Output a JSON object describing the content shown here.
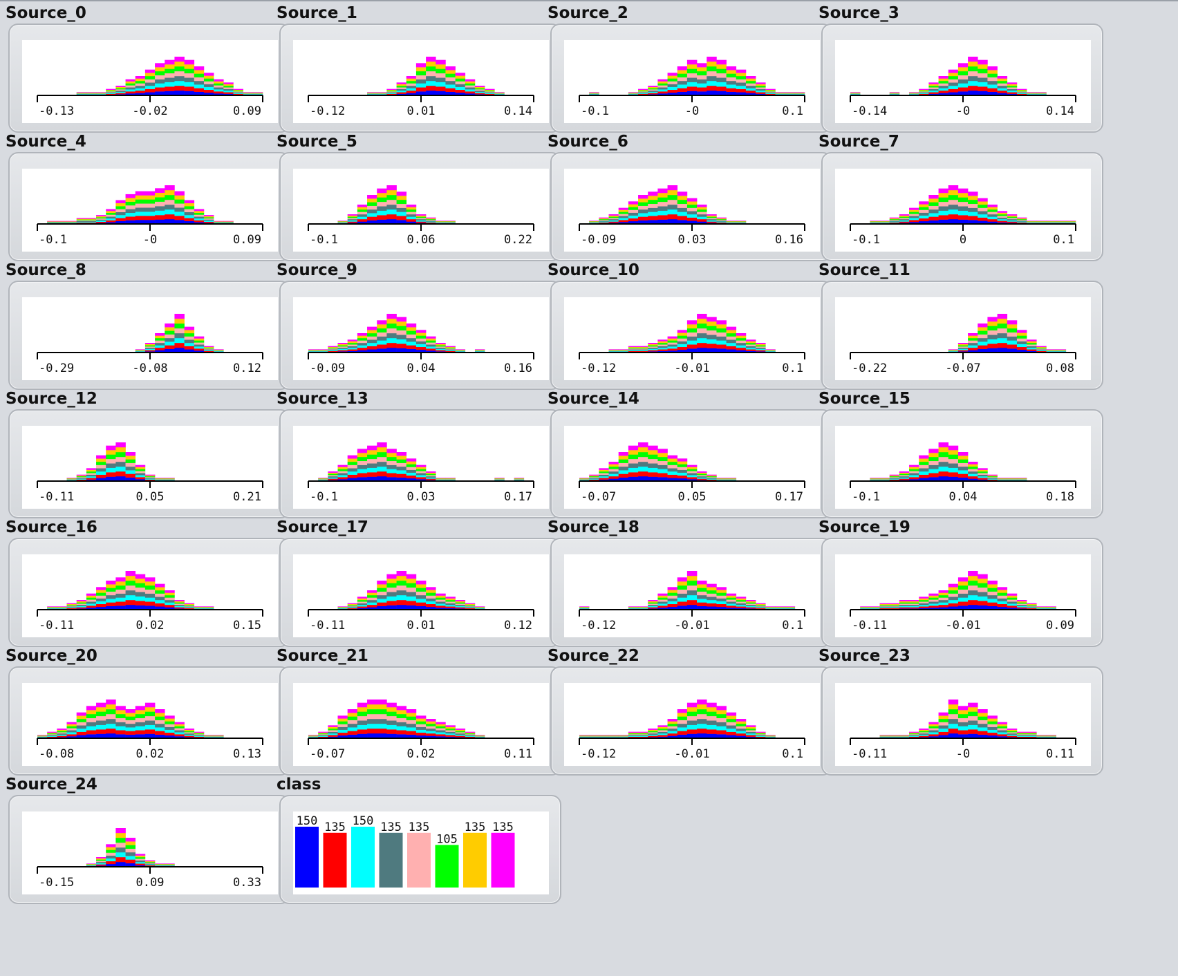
{
  "app": {
    "view": "attribute-distribution-panel"
  },
  "class_colors": [
    "#0000ff",
    "#ff0000",
    "#00ffff",
    "#4f7a7f",
    "#ffb0b0",
    "#00ff00",
    "#ffcc00",
    "#ff00ff"
  ],
  "panels": [
    {
      "name": "Source_0",
      "ticks": [
        "-0.13",
        "-0.02",
        "0.09"
      ],
      "shape": [
        0,
        0,
        0,
        0,
        1,
        1,
        1,
        2,
        3,
        5,
        6,
        8,
        10,
        11,
        12,
        11,
        9,
        7,
        5,
        4,
        2,
        1,
        1
      ]
    },
    {
      "name": "Source_1",
      "ticks": [
        "-0.12",
        "0.01",
        "0.14"
      ],
      "shape": [
        0,
        0,
        0,
        0,
        0,
        0,
        1,
        1,
        2,
        4,
        6,
        10,
        12,
        11,
        9,
        7,
        5,
        3,
        2,
        1,
        0,
        0,
        0
      ]
    },
    {
      "name": "Source_2",
      "ticks": [
        "-0.1",
        "-0",
        "0.1"
      ],
      "shape": [
        0,
        1,
        0,
        0,
        0,
        1,
        2,
        3,
        5,
        7,
        9,
        11,
        10,
        12,
        11,
        9,
        8,
        6,
        4,
        2,
        1,
        1,
        1
      ]
    },
    {
      "name": "Source_3",
      "ticks": [
        "-0.14",
        "-0",
        "0.14"
      ],
      "shape": [
        1,
        0,
        0,
        0,
        1,
        0,
        1,
        2,
        4,
        6,
        8,
        10,
        12,
        11,
        9,
        6,
        4,
        2,
        1,
        1,
        0,
        0,
        0
      ]
    },
    {
      "name": "Source_4",
      "ticks": [
        "-0.1",
        "-0",
        "0.09"
      ],
      "shape": [
        0,
        1,
        1,
        1,
        2,
        2,
        3,
        5,
        8,
        10,
        11,
        11,
        12,
        13,
        11,
        8,
        5,
        3,
        1,
        1,
        0,
        0,
        0
      ]
    },
    {
      "name": "Source_5",
      "ticks": [
        "-0.1",
        "0.06",
        "0.22"
      ],
      "shape": [
        0,
        0,
        0,
        1,
        3,
        6,
        9,
        11,
        12,
        10,
        6,
        3,
        2,
        1,
        1,
        0,
        0,
        0,
        0,
        0,
        0,
        0,
        0
      ]
    },
    {
      "name": "Source_6",
      "ticks": [
        "-0.09",
        "0.03",
        "0.16"
      ],
      "shape": [
        0,
        1,
        2,
        3,
        5,
        7,
        9,
        10,
        11,
        12,
        10,
        8,
        6,
        3,
        2,
        1,
        1,
        0,
        0,
        0,
        0,
        0,
        0
      ]
    },
    {
      "name": "Source_7",
      "ticks": [
        "-0.1",
        "0",
        "0.1"
      ],
      "shape": [
        0,
        0,
        1,
        1,
        2,
        3,
        5,
        7,
        9,
        11,
        12,
        11,
        10,
        8,
        6,
        4,
        3,
        2,
        1,
        1,
        1,
        1,
        1
      ]
    },
    {
      "name": "Source_8",
      "ticks": [
        "-0.29",
        "-0.08",
        "0.12"
      ],
      "shape": [
        0,
        0,
        0,
        0,
        0,
        0,
        0,
        0,
        0,
        0,
        1,
        3,
        6,
        9,
        12,
        8,
        5,
        2,
        1,
        0,
        0,
        0,
        0
      ]
    },
    {
      "name": "Source_9",
      "ticks": [
        "-0.09",
        "0.04",
        "0.16"
      ],
      "shape": [
        1,
        1,
        2,
        3,
        4,
        6,
        8,
        10,
        12,
        11,
        9,
        7,
        5,
        3,
        2,
        1,
        0,
        1,
        0,
        0,
        0,
        0,
        0
      ]
    },
    {
      "name": "Source_10",
      "ticks": [
        "-0.12",
        "-0.01",
        "0.1"
      ],
      "shape": [
        0,
        0,
        0,
        1,
        1,
        2,
        2,
        3,
        4,
        5,
        7,
        10,
        12,
        11,
        10,
        8,
        6,
        4,
        3,
        1,
        0,
        0,
        0
      ]
    },
    {
      "name": "Source_11",
      "ticks": [
        "-0.22",
        "-0.07",
        "0.08"
      ],
      "shape": [
        0,
        0,
        0,
        0,
        0,
        0,
        0,
        0,
        0,
        0,
        1,
        3,
        6,
        9,
        11,
        12,
        10,
        7,
        4,
        2,
        1,
        1,
        0
      ]
    },
    {
      "name": "Source_12",
      "ticks": [
        "-0.11",
        "0.05",
        "0.21"
      ],
      "shape": [
        0,
        0,
        0,
        1,
        2,
        4,
        8,
        11,
        12,
        9,
        5,
        2,
        1,
        1,
        0,
        0,
        0,
        0,
        0,
        0,
        0,
        0,
        0
      ]
    },
    {
      "name": "Source_13",
      "ticks": [
        "-0.1",
        "0.03",
        "0.17"
      ],
      "shape": [
        0,
        1,
        3,
        5,
        8,
        10,
        11,
        12,
        10,
        9,
        7,
        5,
        3,
        1,
        1,
        0,
        0,
        0,
        0,
        1,
        0,
        1,
        0
      ]
    },
    {
      "name": "Source_14",
      "ticks": [
        "-0.07",
        "0.05",
        "0.17"
      ],
      "shape": [
        1,
        2,
        4,
        6,
        9,
        11,
        12,
        11,
        10,
        8,
        7,
        5,
        3,
        2,
        1,
        1,
        0,
        0,
        0,
        0,
        0,
        0,
        0
      ]
    },
    {
      "name": "Source_15",
      "ticks": [
        "-0.1",
        "0.04",
        "0.18"
      ],
      "shape": [
        0,
        0,
        1,
        1,
        2,
        3,
        5,
        8,
        10,
        12,
        11,
        9,
        6,
        4,
        2,
        1,
        1,
        1,
        0,
        0,
        0,
        0,
        0
      ]
    },
    {
      "name": "Source_16",
      "ticks": [
        "-0.11",
        "0.02",
        "0.15"
      ],
      "shape": [
        0,
        1,
        1,
        2,
        3,
        5,
        7,
        9,
        10,
        12,
        11,
        10,
        8,
        6,
        3,
        2,
        1,
        1,
        0,
        0,
        0,
        0,
        0
      ]
    },
    {
      "name": "Source_17",
      "ticks": [
        "-0.11",
        "0.01",
        "0.12"
      ],
      "shape": [
        0,
        0,
        0,
        1,
        2,
        4,
        6,
        9,
        11,
        12,
        11,
        9,
        7,
        5,
        4,
        3,
        2,
        1,
        0,
        0,
        0,
        0,
        0
      ]
    },
    {
      "name": "Source_18",
      "ticks": [
        "-0.12",
        "-0.01",
        "0.1"
      ],
      "shape": [
        1,
        0,
        0,
        0,
        0,
        1,
        1,
        3,
        5,
        7,
        10,
        12,
        9,
        8,
        7,
        5,
        4,
        3,
        2,
        1,
        1,
        1,
        0
      ]
    },
    {
      "name": "Source_19",
      "ticks": [
        "-0.11",
        "-0.01",
        "0.09"
      ],
      "shape": [
        0,
        1,
        1,
        2,
        2,
        3,
        3,
        4,
        5,
        6,
        8,
        10,
        12,
        11,
        9,
        7,
        5,
        3,
        2,
        1,
        1,
        0,
        0
      ]
    },
    {
      "name": "Source_20",
      "ticks": [
        "-0.08",
        "0.02",
        "0.13"
      ],
      "shape": [
        1,
        2,
        3,
        5,
        8,
        10,
        11,
        12,
        10,
        9,
        10,
        11,
        9,
        7,
        5,
        3,
        2,
        1,
        1,
        0,
        0,
        0,
        0
      ]
    },
    {
      "name": "Source_21",
      "ticks": [
        "-0.07",
        "0.02",
        "0.11"
      ],
      "shape": [
        1,
        2,
        4,
        7,
        9,
        11,
        12,
        12,
        11,
        10,
        9,
        7,
        6,
        5,
        4,
        3,
        2,
        1,
        0,
        0,
        0,
        0,
        0
      ]
    },
    {
      "name": "Source_22",
      "ticks": [
        "-0.12",
        "-0.01",
        "0.1"
      ],
      "shape": [
        1,
        1,
        1,
        1,
        1,
        2,
        2,
        3,
        4,
        6,
        9,
        11,
        12,
        11,
        10,
        8,
        6,
        4,
        2,
        1,
        0,
        0,
        0
      ]
    },
    {
      "name": "Source_23",
      "ticks": [
        "-0.11",
        "-0",
        "0.11"
      ],
      "shape": [
        0,
        0,
        0,
        1,
        1,
        1,
        2,
        3,
        5,
        8,
        12,
        10,
        11,
        9,
        7,
        5,
        3,
        2,
        2,
        1,
        1,
        0,
        0
      ]
    },
    {
      "name": "Source_24",
      "ticks": [
        "-0.15",
        "0.09",
        "0.33"
      ],
      "shape": [
        0,
        0,
        0,
        0,
        0,
        1,
        3,
        7,
        12,
        9,
        4,
        2,
        1,
        1,
        0,
        0,
        0,
        0,
        0,
        0,
        0,
        0,
        0
      ]
    }
  ],
  "class_panel": {
    "name": "class",
    "counts": [
      "150",
      "135",
      "150",
      "135",
      "135",
      "105",
      "135",
      "135"
    ],
    "chart_data": {
      "type": "bar",
      "categories": [
        "",
        "",
        "",
        "",
        "",
        "",
        "",
        ""
      ],
      "values": [
        150,
        135,
        150,
        135,
        135,
        105,
        135,
        135
      ]
    }
  }
}
